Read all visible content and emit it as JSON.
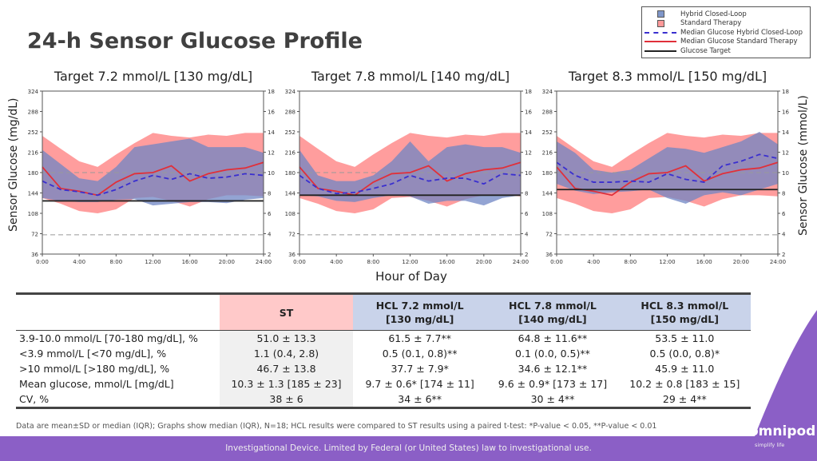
{
  "title": "24-h Sensor Glucose Profile",
  "legend": {
    "items": [
      {
        "label": "Hybrid Closed-Loop",
        "type": "box",
        "color": "#7f96c9"
      },
      {
        "label": "Standard Therapy",
        "type": "box",
        "color": "#f99"
      },
      {
        "label": "Median Glucose Hybrid Closed-Loop",
        "type": "dash",
        "color": "#3a2fcf"
      },
      {
        "label": "Median Glucose Standard Therapy",
        "type": "line",
        "color": "#e0303a"
      },
      {
        "label": "Glucose Target",
        "type": "line",
        "color": "#222"
      }
    ]
  },
  "axes": {
    "ylabel_left": "Sensor Glucose (mg/dL)",
    "ylabel_right": "Sensor Glucose (mmol/L)",
    "xlabel": "Hour of Day"
  },
  "colors": {
    "hcl_band": "#6f86c4",
    "st_band": "#ff8c8c",
    "overlap": "#b65a78",
    "hcl_median": "#3a2fcf",
    "st_median": "#e0303a",
    "target": "#222",
    "ref": "#999",
    "brand": "#8b5fc6"
  },
  "chart_data": [
    {
      "type": "area",
      "title": "Target 7.2 mmol/L [130 mg/dL]",
      "target": 130,
      "x": [
        "0:00",
        "2:00",
        "4:00",
        "6:00",
        "8:00",
        "10:00",
        "12:00",
        "14:00",
        "16:00",
        "18:00",
        "20:00",
        "22:00",
        "24:00"
      ],
      "xticks": [
        "0:00",
        "4:00",
        "8:00",
        "12:00",
        "16:00",
        "20:00",
        "24:00"
      ],
      "yticks_left": [
        36,
        72,
        108,
        144,
        180,
        216,
        252,
        288,
        324
      ],
      "yticks_right": [
        2,
        4,
        6,
        8,
        10,
        12,
        14,
        16,
        18
      ],
      "ylim": [
        36,
        324
      ],
      "ref_lines": [
        70,
        180
      ],
      "series": [
        {
          "name": "Median Glucose Standard Therapy",
          "values": [
            190,
            152,
            147,
            140,
            163,
            178,
            180,
            192,
            165,
            178,
            185,
            188,
            198
          ]
        },
        {
          "name": "Median Glucose Hybrid Closed-Loop",
          "values": [
            165,
            150,
            146,
            140,
            150,
            165,
            175,
            168,
            178,
            170,
            172,
            178,
            175
          ]
        },
        {
          "name": "Standard Therapy",
          "low": [
            135,
            125,
            112,
            108,
            115,
            135,
            137,
            130,
            120,
            133,
            140,
            140,
            138
          ],
          "high": [
            245,
            222,
            200,
            190,
            212,
            232,
            250,
            245,
            242,
            247,
            245,
            250,
            250
          ]
        },
        {
          "name": "Hybrid Closed-Loop",
          "low": [
            135,
            130,
            128,
            128,
            132,
            133,
            122,
            125,
            128,
            128,
            126,
            132,
            135
          ],
          "high": [
            220,
            195,
            170,
            165,
            190,
            225,
            230,
            235,
            240,
            225,
            225,
            225,
            215
          ]
        }
      ]
    },
    {
      "type": "area",
      "title": "Target 7.8 mmol/L [140 mg/dL]",
      "target": 140,
      "x": [
        "0:00",
        "2:00",
        "4:00",
        "6:00",
        "8:00",
        "10:00",
        "12:00",
        "14:00",
        "16:00",
        "18:00",
        "20:00",
        "22:00",
        "24:00"
      ],
      "xticks": [
        "0:00",
        "4:00",
        "8:00",
        "12:00",
        "16:00",
        "20:00",
        "24:00"
      ],
      "yticks_left": [
        36,
        72,
        108,
        144,
        180,
        216,
        252,
        288,
        324
      ],
      "yticks_right": [
        2,
        4,
        6,
        8,
        10,
        12,
        14,
        16,
        18
      ],
      "ylim": [
        36,
        324
      ],
      "ref_lines": [
        70,
        180
      ],
      "series": [
        {
          "name": "Median Glucose Standard Therapy",
          "values": [
            190,
            152,
            147,
            140,
            163,
            178,
            180,
            192,
            165,
            178,
            185,
            188,
            198
          ]
        },
        {
          "name": "Median Glucose Hybrid Closed-Loop",
          "values": [
            175,
            152,
            143,
            145,
            152,
            160,
            175,
            165,
            170,
            170,
            160,
            178,
            175
          ]
        },
        {
          "name": "Standard Therapy",
          "low": [
            135,
            125,
            112,
            108,
            115,
            135,
            137,
            130,
            120,
            133,
            140,
            140,
            138
          ],
          "high": [
            245,
            222,
            200,
            190,
            212,
            232,
            250,
            245,
            242,
            247,
            245,
            250,
            250
          ]
        },
        {
          "name": "Hybrid Closed-Loop",
          "low": [
            140,
            138,
            130,
            128,
            135,
            140,
            138,
            125,
            130,
            130,
            122,
            135,
            140
          ],
          "high": [
            220,
            175,
            165,
            165,
            175,
            200,
            235,
            200,
            225,
            230,
            225,
            225,
            215
          ]
        }
      ]
    },
    {
      "type": "area",
      "title": "Target 8.3 mmol/L [150 mg/dL]",
      "target": 150,
      "x": [
        "0:00",
        "2:00",
        "4:00",
        "6:00",
        "8:00",
        "10:00",
        "12:00",
        "14:00",
        "16:00",
        "18:00",
        "20:00",
        "22:00",
        "24:00"
      ],
      "xticks": [
        "0:00",
        "4:00",
        "8:00",
        "12:00",
        "16:00",
        "20:00",
        "24:00"
      ],
      "yticks_left": [
        36,
        72,
        108,
        144,
        180,
        216,
        252,
        288,
        324
      ],
      "yticks_right": [
        2,
        4,
        6,
        8,
        10,
        12,
        14,
        16,
        18
      ],
      "ylim": [
        36,
        324
      ],
      "ref_lines": [
        70,
        180
      ],
      "series": [
        {
          "name": "Median Glucose Standard Therapy",
          "values": [
            190,
            152,
            147,
            140,
            163,
            178,
            180,
            192,
            165,
            178,
            185,
            188,
            198
          ]
        },
        {
          "name": "Median Glucose Hybrid Closed-Loop",
          "values": [
            198,
            175,
            163,
            163,
            165,
            163,
            178,
            168,
            163,
            192,
            200,
            212,
            205
          ]
        },
        {
          "name": "Standard Therapy",
          "low": [
            135,
            125,
            112,
            108,
            115,
            135,
            137,
            130,
            120,
            133,
            140,
            140,
            138
          ],
          "high": [
            245,
            222,
            200,
            190,
            212,
            232,
            250,
            245,
            242,
            247,
            245,
            250,
            250
          ]
        },
        {
          "name": "Hybrid Closed-Loop",
          "low": [
            160,
            148,
            142,
            145,
            147,
            150,
            135,
            125,
            140,
            145,
            140,
            150,
            160
          ],
          "high": [
            235,
            215,
            185,
            180,
            185,
            205,
            225,
            222,
            215,
            225,
            235,
            252,
            230
          ]
        }
      ]
    }
  ],
  "table": {
    "headers": [
      "",
      "ST",
      "HCL 7.2 mmol/L\n[130 mg/dL]",
      "HCL 7.8 mmol/L\n[140 mg/dL]",
      "HCL 8.3 mmol/L\n[150 mg/dL]"
    ],
    "rows": [
      [
        "3.9-10.0 mmol/L [70-180 mg/dL], %",
        "51.0 ± 13.3",
        "61.5 ± 7.7**",
        "64.8 ± 11.6**",
        "53.5 ± 11.0"
      ],
      [
        "<3.9 mmol/L [<70 mg/dL], %",
        "1.1 (0.4, 2.8)",
        "0.5 (0.1, 0.8)**",
        "0.1 (0.0, 0.5)**",
        "0.5 (0.0, 0.8)*"
      ],
      [
        ">10 mmol/L [>180 mg/dL], %",
        "46.7 ± 13.8",
        "37.7 ± 7.9*",
        "34.6 ± 12.1**",
        "45.9 ± 11.0"
      ],
      [
        "Mean glucose, mmol/L [mg/dL]",
        "10.3 ± 1.3 [185 ± 23]",
        "9.7 ± 0.6* [174 ± 11]",
        "9.6 ± 0.9* [173 ± 17]",
        "10.2 ± 0.8 [183 ± 15]"
      ],
      [
        "CV, %",
        "38 ± 6",
        "34 ± 6**",
        "30 ± 4**",
        "29 ± 4**"
      ]
    ]
  },
  "footnote": "Data are mean±SD or median (IQR); Graphs show median (IQR), N=18; HCL results were compared to ST results using a paired t-test: *P-value < 0.05, **P-value < 0.01",
  "footer": "Investigational Device. Limited by Federal (or United States) law to investigational use.",
  "logo": {
    "name": "omnipod",
    "tagline": "simplify life"
  }
}
